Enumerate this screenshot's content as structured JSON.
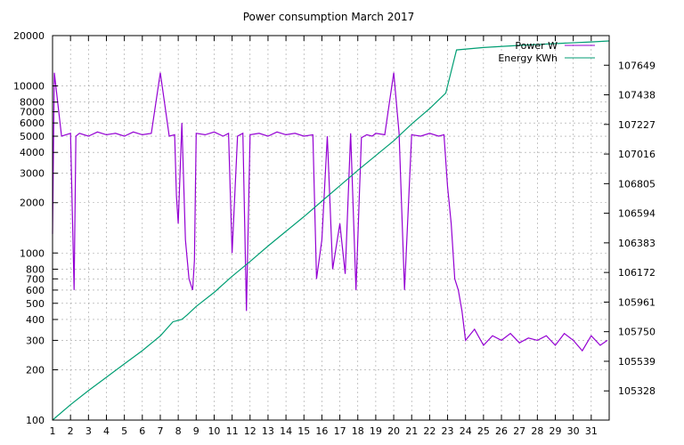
{
  "chart_data": {
    "type": "line",
    "title": "Power consumption March 2017",
    "xlabel": "",
    "ylabel": "",
    "y2label": "",
    "x_ticks": [
      "1",
      "2",
      "3",
      "4",
      "5",
      "6",
      "7",
      "8",
      "9",
      "10",
      "11",
      "12",
      "13",
      "14",
      "15",
      "16",
      "17",
      "18",
      "19",
      "20",
      "21",
      "22",
      "23",
      "24",
      "25",
      "26",
      "27",
      "28",
      "29",
      "30",
      "31"
    ],
    "xlim": [
      1,
      32
    ],
    "y_scale": "log",
    "ylim": [
      100,
      20000
    ],
    "y_ticks": [
      100,
      200,
      300,
      400,
      500,
      600,
      700,
      800,
      1000,
      2000,
      3000,
      4000,
      5000,
      6000,
      7000,
      8000,
      10000,
      20000
    ],
    "y2lim": [
      105120,
      107860
    ],
    "y2_ticks": [
      105328,
      105539,
      105750,
      105961,
      106172,
      106383,
      106594,
      106805,
      107016,
      107227,
      107438,
      107649
    ],
    "grid": true,
    "legend_position": "top-right",
    "series": [
      {
        "name": "Power W",
        "axis": "left",
        "color": "#9400d3",
        "x": [
          1.0,
          1.1,
          1.5,
          2.0,
          2.2,
          2.3,
          2.5,
          3.0,
          3.5,
          4.0,
          4.5,
          5.0,
          5.5,
          6.0,
          6.5,
          7.0,
          7.5,
          7.8,
          7.9,
          8.0,
          8.2,
          8.4,
          8.6,
          8.8,
          8.9,
          9.0,
          9.5,
          10.0,
          10.5,
          10.8,
          11.0,
          11.3,
          11.6,
          11.8,
          12.0,
          12.5,
          13.0,
          13.5,
          14.0,
          14.5,
          15.0,
          15.5,
          15.7,
          16.0,
          16.3,
          16.6,
          17.0,
          17.3,
          17.6,
          17.9,
          18.2,
          18.5,
          18.8,
          19.0,
          19.5,
          20.0,
          20.3,
          20.6,
          21.0,
          21.5,
          22.0,
          22.5,
          22.8,
          23.0,
          23.2,
          23.4,
          23.6,
          23.8,
          24.0,
          24.5,
          25.0,
          25.5,
          26.0,
          26.5,
          27.0,
          27.5,
          28.0,
          28.5,
          29.0,
          29.5,
          30.0,
          30.5,
          31.0,
          31.5,
          31.9
        ],
        "values": [
          1300,
          12000,
          5000,
          5200,
          600,
          5000,
          5200,
          5000,
          5300,
          5100,
          5200,
          5000,
          5300,
          5100,
          5200,
          12000,
          5000,
          5100,
          2200,
          1500,
          6000,
          1200,
          700,
          600,
          900,
          5200,
          5100,
          5300,
          5000,
          5200,
          1000,
          5000,
          5200,
          450,
          5100,
          5200,
          5000,
          5300,
          5100,
          5200,
          5000,
          5100,
          700,
          1200,
          5000,
          800,
          1500,
          750,
          5200,
          600,
          4900,
          5100,
          5000,
          5200,
          5100,
          12000,
          5200,
          600,
          5100,
          5000,
          5200,
          5000,
          5100,
          2500,
          1500,
          700,
          600,
          450,
          300,
          350,
          280,
          320,
          300,
          330,
          290,
          310,
          300,
          320,
          280,
          330,
          300,
          260,
          320,
          280,
          300
        ]
      },
      {
        "name": "Energy KWh",
        "axis": "right",
        "color": "#009e73",
        "x": [
          1.0,
          2.0,
          3.0,
          4.0,
          5.0,
          6.0,
          7.0,
          7.7,
          8.2,
          8.5,
          9.0,
          10.0,
          11.0,
          12.0,
          13.0,
          14.0,
          15.0,
          16.0,
          17.0,
          18.0,
          19.0,
          20.0,
          21.0,
          22.0,
          22.9,
          23.5,
          25.0,
          27.0,
          29.0,
          31.0,
          32.0
        ],
        "values": [
          105120,
          105230,
          105330,
          105425,
          105520,
          105615,
          105720,
          105820,
          105838,
          105870,
          105930,
          106030,
          106145,
          106250,
          106360,
          106465,
          106570,
          106680,
          106790,
          106900,
          107005,
          107110,
          107230,
          107340,
          107450,
          107758,
          107775,
          107790,
          107803,
          107815,
          107822
        ]
      }
    ]
  }
}
